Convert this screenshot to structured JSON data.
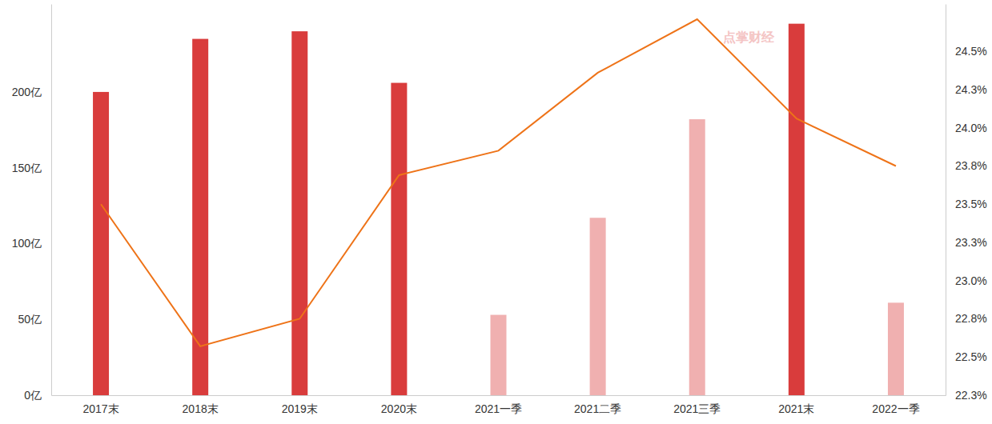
{
  "chart_data": {
    "type": "bar",
    "categories": [
      "2017末",
      "2018末",
      "2019末",
      "2020末",
      "2021一季",
      "2021二季",
      "2021三季",
      "2021末",
      "2022一季"
    ],
    "series": [
      {
        "type": "bar",
        "colors": [
          "#d93c3c",
          "#d93c3c",
          "#d93c3c",
          "#d93c3c",
          "#f0b0b0",
          "#f0b0b0",
          "#f0b0b0",
          "#d93c3c",
          "#f0b0b0"
        ],
        "values": [
          200,
          235,
          240,
          206,
          53,
          117,
          182,
          245,
          61
        ]
      },
      {
        "type": "line",
        "color": "#ee7318",
        "axis": "y2",
        "values": [
          23.5,
          22.57,
          22.75,
          23.69,
          23.85,
          24.36,
          24.71,
          24.06,
          23.75
        ]
      }
    ],
    "ylim": [
      0,
      258
    ],
    "yticks": [
      {
        "value": 0,
        "label": "0亿"
      },
      {
        "value": 50,
        "label": "50亿"
      },
      {
        "value": 100,
        "label": "100亿"
      },
      {
        "value": 150,
        "label": "150亿"
      },
      {
        "value": 200,
        "label": "200亿"
      }
    ],
    "y2lim": [
      22.25,
      24.81
    ],
    "y2ticks": [
      {
        "value": 22.25,
        "label": "22.3%"
      },
      {
        "value": 22.5,
        "label": "22.5%"
      },
      {
        "value": 22.75,
        "label": "22.8%"
      },
      {
        "value": 23.0,
        "label": "23.0%"
      },
      {
        "value": 23.25,
        "label": "23.3%"
      },
      {
        "value": 23.5,
        "label": "23.5%"
      },
      {
        "value": 23.75,
        "label": "23.8%"
      },
      {
        "value": 24.0,
        "label": "24.0%"
      },
      {
        "value": 24.25,
        "label": "24.3%"
      },
      {
        "value": 24.5,
        "label": "24.5%"
      }
    ],
    "annotations": [
      {
        "text": "点掌财经"
      }
    ]
  }
}
